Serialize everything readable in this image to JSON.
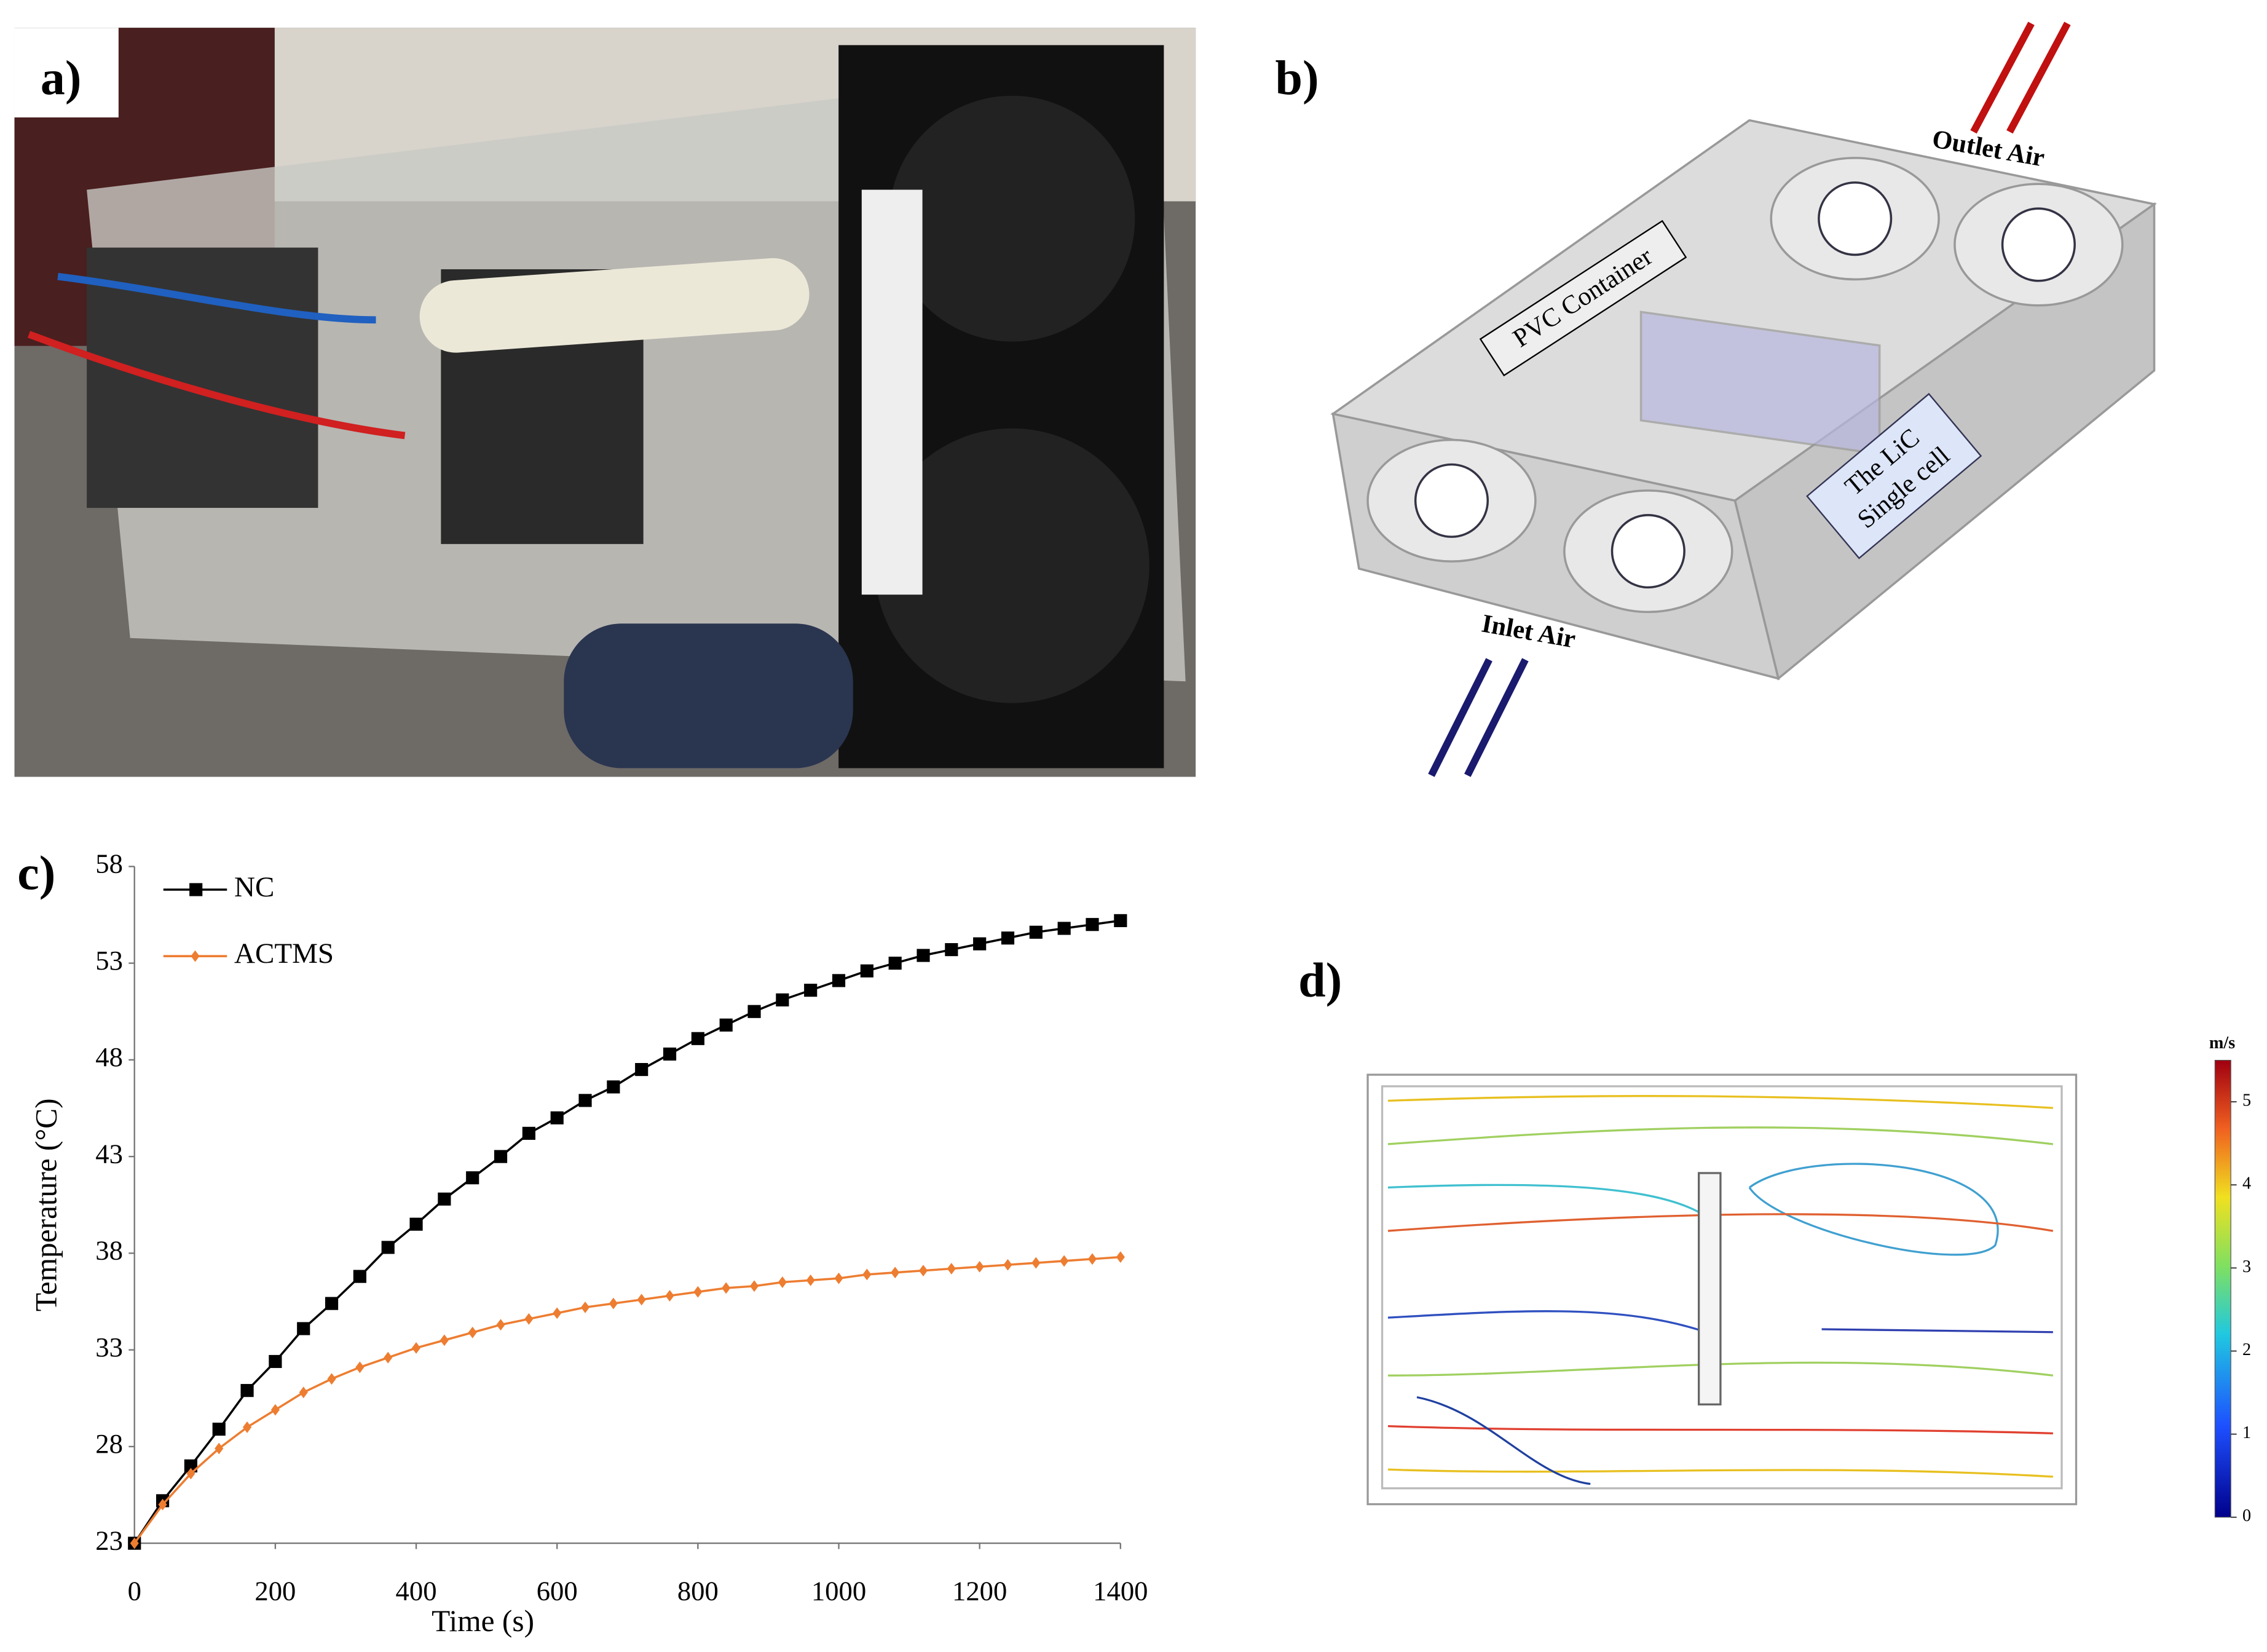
{
  "panel_a": {
    "label": "a)"
  },
  "panel_b": {
    "label": "b)",
    "outlet": "Outlet Air",
    "inlet": "Inlet Air",
    "container": "PVC Container",
    "cell_line1": "The LiC",
    "cell_line2": "Single cell"
  },
  "chart_data": {
    "type": "line",
    "label": "c)",
    "x_label": "Time (s)",
    "y_label": "Temperature (°C)",
    "x": [
      0,
      40,
      80,
      120,
      160,
      200,
      240,
      280,
      320,
      360,
      400,
      440,
      480,
      520,
      560,
      600,
      640,
      680,
      720,
      760,
      800,
      840,
      880,
      920,
      960,
      1000,
      1040,
      1080,
      1120,
      1160,
      1200,
      1240,
      1280,
      1320,
      1360,
      1400
    ],
    "series": [
      {
        "name": "NC",
        "color": "#000000",
        "marker": "square",
        "values": [
          23,
          25.2,
          27.0,
          28.9,
          30.9,
          32.4,
          34.1,
          35.4,
          36.8,
          38.3,
          39.5,
          40.8,
          41.9,
          43.0,
          44.2,
          45.0,
          45.9,
          46.6,
          47.5,
          48.3,
          49.1,
          49.8,
          50.5,
          51.1,
          51.6,
          52.1,
          52.6,
          53.0,
          53.4,
          53.7,
          54.0,
          54.3,
          54.6,
          54.8,
          55.0,
          55.2
        ]
      },
      {
        "name": "ACTMS",
        "color": "#ed7d31",
        "marker": "diamond",
        "values": [
          23,
          25.0,
          26.6,
          27.9,
          29.0,
          29.9,
          30.8,
          31.5,
          32.1,
          32.6,
          33.1,
          33.5,
          33.9,
          34.3,
          34.6,
          34.9,
          35.2,
          35.4,
          35.6,
          35.8,
          36.0,
          36.2,
          36.3,
          36.5,
          36.6,
          36.7,
          36.9,
          37.0,
          37.1,
          37.2,
          37.3,
          37.4,
          37.5,
          37.6,
          37.7,
          37.8
        ]
      }
    ],
    "xlim": [
      0,
      1400
    ],
    "xticks": [
      0,
      200,
      400,
      600,
      800,
      1000,
      1200,
      1400
    ],
    "ylim": [
      23,
      58
    ],
    "yticks": [
      23,
      28,
      33,
      38,
      43,
      48,
      53,
      58
    ],
    "legend": "upper left"
  },
  "panel_d": {
    "label": "d)",
    "colorbar": {
      "unit": "m/s",
      "lim": [
        0,
        5.5
      ],
      "ticks": [
        0,
        1,
        2,
        3,
        4,
        5
      ]
    }
  }
}
